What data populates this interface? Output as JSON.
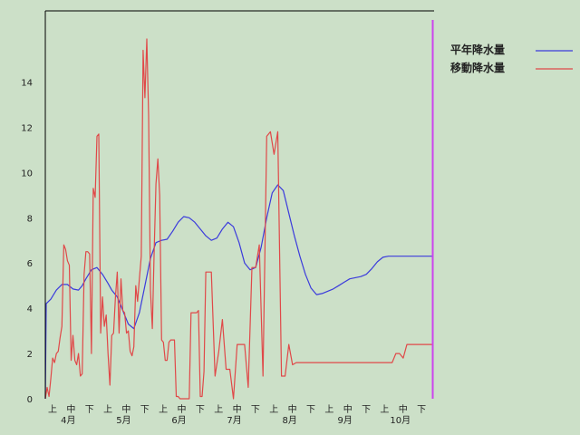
{
  "chart_data": {
    "type": "line",
    "title": "",
    "xlabel": "",
    "ylabel": "",
    "ylim": [
      0,
      16
    ],
    "y_ticks": [
      0,
      2,
      4,
      6,
      8,
      10,
      12,
      14
    ],
    "x_subticks": [
      "上",
      "中",
      "下"
    ],
    "months": [
      "4月",
      "5月",
      "6月",
      "7月",
      "8月",
      "9月",
      "10月"
    ],
    "legend_position": "top-right",
    "grid": false,
    "x_range": [
      0,
      21
    ],
    "marker_x": 21,
    "series": [
      {
        "name": "平年降水量",
        "color": "#3b3bdc",
        "x": [
          0,
          0.05,
          0.3,
          0.6,
          0.9,
          1.2,
          1.5,
          1.8,
          2.0,
          2.2,
          2.5,
          2.8,
          3.1,
          3.4,
          3.6,
          3.9,
          4.2,
          4.5,
          4.8,
          5.1,
          5.4,
          5.7,
          6.0,
          6.3,
          6.6,
          6.9,
          7.2,
          7.5,
          7.8,
          8.1,
          8.4,
          8.7,
          9.0,
          9.3,
          9.6,
          9.9,
          10.2,
          10.5,
          10.8,
          11.1,
          11.4,
          11.7,
          12.0,
          12.3,
          12.6,
          12.9,
          13.2,
          13.5,
          13.8,
          14.1,
          14.4,
          14.7,
          15.0,
          15.3,
          15.6,
          15.9,
          16.2,
          16.5,
          16.8,
          17.1,
          17.4,
          17.7,
          18.0,
          18.3,
          18.6,
          18.9,
          19.2,
          19.5,
          19.8,
          20.1,
          20.4,
          20.7,
          20.95
        ],
        "values": [
          0,
          4.2,
          4.4,
          4.8,
          5.05,
          5.05,
          4.85,
          4.8,
          5.0,
          5.3,
          5.7,
          5.8,
          5.5,
          5.1,
          4.8,
          4.5,
          3.9,
          3.3,
          3.1,
          3.8,
          5.0,
          6.2,
          6.9,
          7.0,
          7.05,
          7.4,
          7.8,
          8.05,
          8.0,
          7.8,
          7.5,
          7.2,
          7.0,
          7.1,
          7.5,
          7.8,
          7.6,
          6.9,
          6.0,
          5.7,
          5.8,
          6.7,
          8.0,
          9.1,
          9.45,
          9.2,
          8.2,
          7.2,
          6.3,
          5.5,
          4.9,
          4.6,
          4.65,
          4.75,
          4.85,
          5.0,
          5.15,
          5.3,
          5.35,
          5.4,
          5.5,
          5.75,
          6.05,
          6.25,
          6.3,
          6.3,
          6.3,
          6.3,
          6.3,
          6.3,
          6.3,
          6.3,
          6.3
        ]
      },
      {
        "name": "移動降水量",
        "color": "#e04848",
        "x": [
          0,
          0.1,
          0.2,
          0.3,
          0.4,
          0.5,
          0.6,
          0.7,
          0.8,
          0.9,
          1.0,
          1.1,
          1.2,
          1.3,
          1.4,
          1.5,
          1.6,
          1.7,
          1.8,
          1.9,
          2.0,
          2.1,
          2.2,
          2.3,
          2.4,
          2.5,
          2.6,
          2.7,
          2.8,
          2.9,
          3.0,
          3.1,
          3.2,
          3.3,
          3.4,
          3.5,
          3.6,
          3.7,
          3.8,
          3.9,
          4.0,
          4.1,
          4.2,
          4.3,
          4.4,
          4.5,
          4.6,
          4.7,
          4.8,
          4.9,
          5.0,
          5.1,
          5.2,
          5.3,
          5.4,
          5.5,
          5.6,
          5.7,
          5.8,
          5.9,
          6.0,
          6.1,
          6.2,
          6.3,
          6.4,
          6.5,
          6.6,
          6.7,
          6.8,
          6.9,
          7.0,
          7.1,
          7.2,
          7.3,
          7.4,
          7.5,
          7.6,
          7.7,
          7.8,
          7.9,
          8.0,
          8.1,
          8.2,
          8.3,
          8.4,
          8.5,
          8.6,
          8.7,
          8.8,
          8.9,
          9.0,
          9.2,
          9.4,
          9.6,
          9.8,
          10.0,
          10.2,
          10.4,
          10.6,
          10.8,
          11.0,
          11.2,
          11.4,
          11.6,
          11.8,
          12.0,
          12.2,
          12.4,
          12.6,
          12.8,
          13.0,
          13.2,
          13.4,
          13.6,
          13.8,
          14.0,
          14.2,
          14.4,
          14.6,
          14.8,
          15.0,
          15.2,
          15.4,
          15.6,
          15.8,
          16.0,
          16.2,
          16.4,
          16.6,
          16.8,
          17.0,
          17.2,
          17.4,
          17.6,
          17.8,
          18.0,
          18.2,
          18.4,
          18.6,
          18.8,
          19.0,
          19.2,
          19.4,
          19.6,
          19.8,
          20.0,
          20.2,
          20.4,
          20.6,
          20.8,
          20.95
        ],
        "values": [
          0,
          0.5,
          0.1,
          0.9,
          1.8,
          1.6,
          2.0,
          2.1,
          2.7,
          3.2,
          6.8,
          6.6,
          6.1,
          5.9,
          1.7,
          2.8,
          1.7,
          1.5,
          2.0,
          1.0,
          1.1,
          5.5,
          6.5,
          6.5,
          6.4,
          2.0,
          9.3,
          8.9,
          11.6,
          11.7,
          2.9,
          4.5,
          3.2,
          3.7,
          2.0,
          0.6,
          2.8,
          2.9,
          4.5,
          5.6,
          2.9,
          5.3,
          3.9,
          3.8,
          2.9,
          3.0,
          2.1,
          1.9,
          2.3,
          5.0,
          4.3,
          5.3,
          6.3,
          15.4,
          13.3,
          15.9,
          12.5,
          4.8,
          3.1,
          6.5,
          9.5,
          10.6,
          9.0,
          2.6,
          2.5,
          1.7,
          1.7,
          2.5,
          2.6,
          2.6,
          2.6,
          0.1,
          0.1,
          0,
          0,
          0,
          0,
          0,
          0,
          3.8,
          3.8,
          3.8,
          3.8,
          3.9,
          0.1,
          0.1,
          1.2,
          5.6,
          5.6,
          5.6,
          5.6,
          1.0,
          2.1,
          3.5,
          1.3,
          1.3,
          0,
          2.4,
          2.4,
          2.4,
          0.5,
          5.8,
          5.8,
          6.8,
          1.0,
          11.6,
          11.8,
          10.8,
          11.8,
          1.0,
          1.0,
          2.4,
          1.5,
          1.6,
          1.6,
          1.6,
          1.6,
          1.6,
          1.6,
          1.6,
          1.6,
          1.6,
          1.6,
          1.6,
          1.6,
          1.6,
          1.6,
          1.6,
          1.6,
          1.6,
          1.6,
          1.6,
          1.6,
          1.6,
          1.6,
          1.6,
          1.6,
          1.6,
          1.6,
          1.6,
          2.0,
          2.0,
          1.8,
          2.4,
          2.4,
          2.4,
          2.4,
          2.4,
          2.4,
          2.4,
          2.4
        ]
      }
    ]
  }
}
